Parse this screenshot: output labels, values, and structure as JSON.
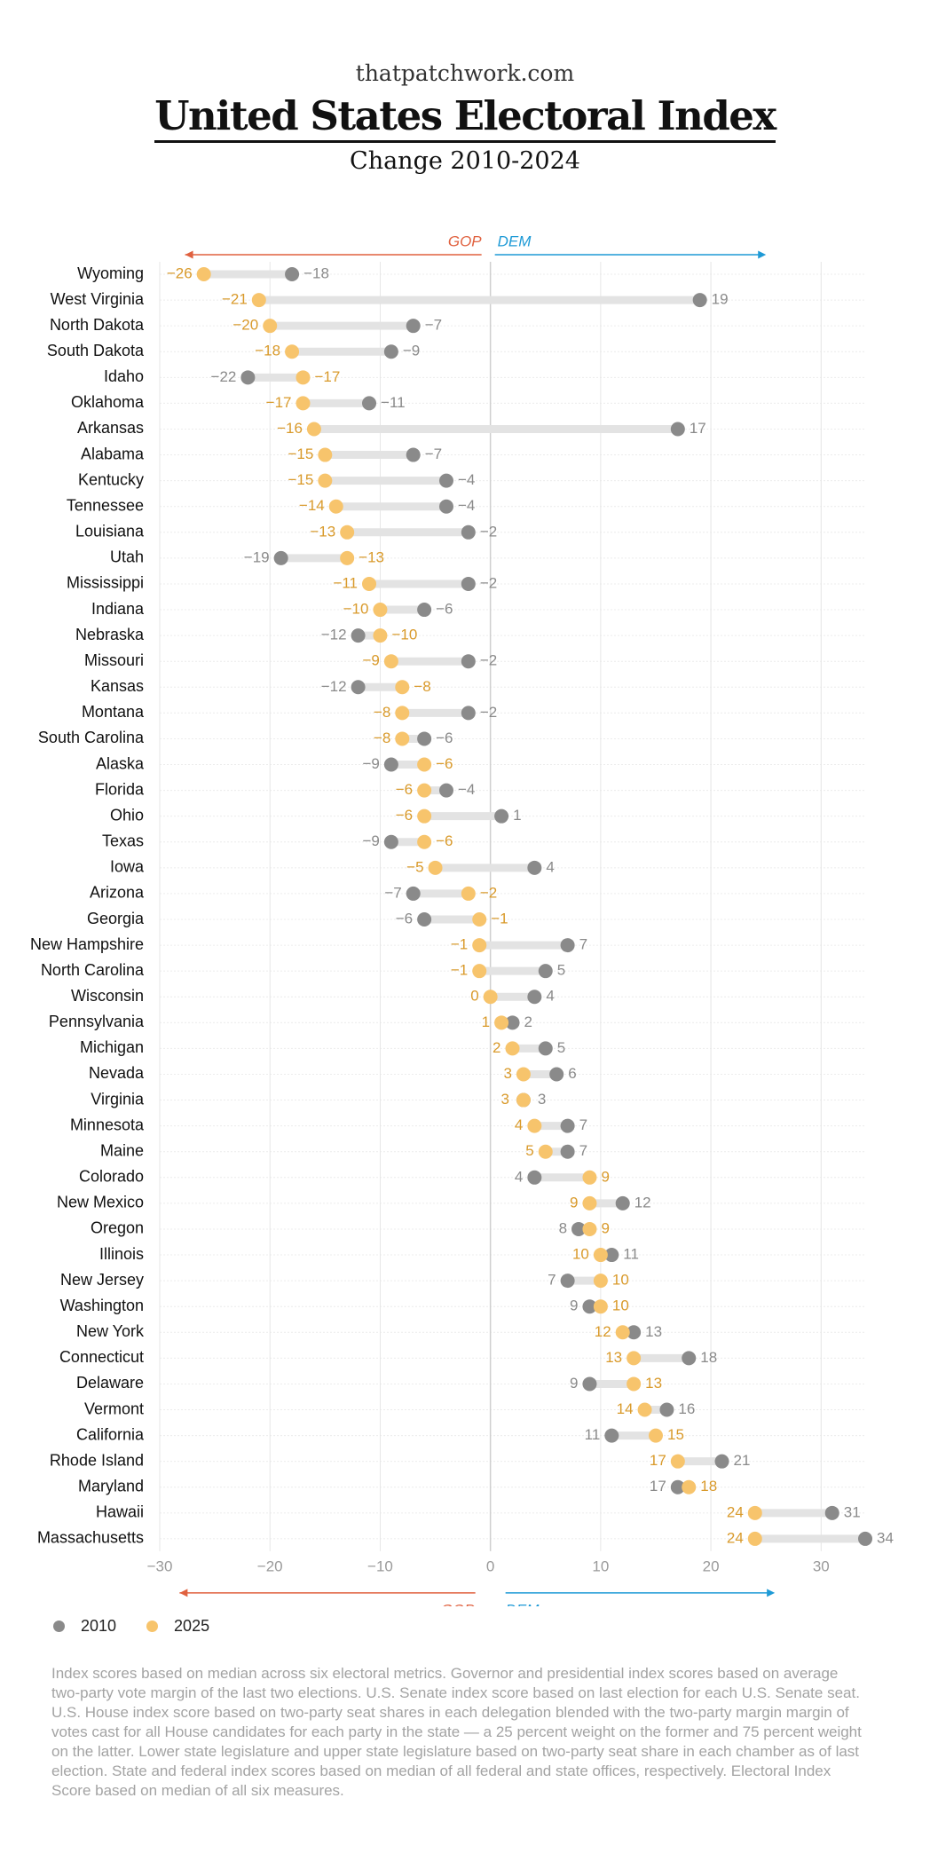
{
  "header": {
    "site": "thatpatchwork.com",
    "title": "United States Electoral Index",
    "subtitle": "Change 2010-2024"
  },
  "colors": {
    "y2010": "#8a8a8a",
    "y2025": "#f7c46c",
    "gop": "#e0613f",
    "dem": "#1e9ad6",
    "label2025": "#d99a2b",
    "label2010": "#8a8a8a",
    "connector": "#e3e3e3"
  },
  "chart_data": {
    "type": "dumbbell",
    "xlim": [
      -30,
      34
    ],
    "xticks": [
      -30,
      -20,
      -10,
      0,
      10,
      20,
      30
    ],
    "xtick_labels": [
      "−30",
      "−20",
      "−10",
      "0",
      "10",
      "20",
      "30"
    ],
    "direction_labels": {
      "left": "GOP",
      "right": "DEM"
    },
    "grid": true,
    "legend_position": "bottom-left",
    "series": [
      {
        "name": "2010",
        "color": "#8a8a8a"
      },
      {
        "name": "2025",
        "color": "#f7c46c"
      }
    ],
    "rows": [
      {
        "state": "Wyoming",
        "v2010": -18,
        "v2025": -26
      },
      {
        "state": "West Virginia",
        "v2010": 19,
        "v2025": -21
      },
      {
        "state": "North Dakota",
        "v2010": -7,
        "v2025": -20
      },
      {
        "state": "South Dakota",
        "v2010": -9,
        "v2025": -18
      },
      {
        "state": "Idaho",
        "v2010": -22,
        "v2025": -17
      },
      {
        "state": "Oklahoma",
        "v2010": -11,
        "v2025": -17
      },
      {
        "state": "Arkansas",
        "v2010": 17,
        "v2025": -16
      },
      {
        "state": "Alabama",
        "v2010": -7,
        "v2025": -15
      },
      {
        "state": "Kentucky",
        "v2010": -4,
        "v2025": -15
      },
      {
        "state": "Tennessee",
        "v2010": -4,
        "v2025": -14
      },
      {
        "state": "Louisiana",
        "v2010": -2,
        "v2025": -13
      },
      {
        "state": "Utah",
        "v2010": -19,
        "v2025": -13
      },
      {
        "state": "Mississippi",
        "v2010": -2,
        "v2025": -11
      },
      {
        "state": "Indiana",
        "v2010": -6,
        "v2025": -10
      },
      {
        "state": "Nebraska",
        "v2010": -12,
        "v2025": -10
      },
      {
        "state": "Missouri",
        "v2010": -2,
        "v2025": -9
      },
      {
        "state": "Kansas",
        "v2010": -12,
        "v2025": -8
      },
      {
        "state": "Montana",
        "v2010": -2,
        "v2025": -8
      },
      {
        "state": "South Carolina",
        "v2010": -6,
        "v2025": -8
      },
      {
        "state": "Alaska",
        "v2010": -9,
        "v2025": -6
      },
      {
        "state": "Florida",
        "v2010": -4,
        "v2025": -6
      },
      {
        "state": "Ohio",
        "v2010": 1,
        "v2025": -6
      },
      {
        "state": "Texas",
        "v2010": -9,
        "v2025": -6
      },
      {
        "state": "Iowa",
        "v2010": 4,
        "v2025": -5
      },
      {
        "state": "Arizona",
        "v2010": -7,
        "v2025": -2
      },
      {
        "state": "Georgia",
        "v2010": -6,
        "v2025": -1
      },
      {
        "state": "New Hampshire",
        "v2010": 7,
        "v2025": -1
      },
      {
        "state": "North Carolina",
        "v2010": 5,
        "v2025": -1
      },
      {
        "state": "Wisconsin",
        "v2010": 4,
        "v2025": 0
      },
      {
        "state": "Pennsylvania",
        "v2010": 2,
        "v2025": 1
      },
      {
        "state": "Michigan",
        "v2010": 5,
        "v2025": 2
      },
      {
        "state": "Nevada",
        "v2010": 6,
        "v2025": 3
      },
      {
        "state": "Virginia",
        "v2010": 3,
        "v2025": 3
      },
      {
        "state": "Minnesota",
        "v2010": 7,
        "v2025": 4
      },
      {
        "state": "Maine",
        "v2010": 7,
        "v2025": 5
      },
      {
        "state": "Colorado",
        "v2010": 4,
        "v2025": 9
      },
      {
        "state": "New Mexico",
        "v2010": 12,
        "v2025": 9
      },
      {
        "state": "Oregon",
        "v2010": 8,
        "v2025": 9
      },
      {
        "state": "Illinois",
        "v2010": 11,
        "v2025": 10
      },
      {
        "state": "New Jersey",
        "v2010": 7,
        "v2025": 10
      },
      {
        "state": "Washington",
        "v2010": 9,
        "v2025": 10
      },
      {
        "state": "New York",
        "v2010": 13,
        "v2025": 12
      },
      {
        "state": "Connecticut",
        "v2010": 18,
        "v2025": 13
      },
      {
        "state": "Delaware",
        "v2010": 9,
        "v2025": 13
      },
      {
        "state": "Vermont",
        "v2010": 16,
        "v2025": 14
      },
      {
        "state": "California",
        "v2010": 11,
        "v2025": 15
      },
      {
        "state": "Rhode Island",
        "v2010": 21,
        "v2025": 17
      },
      {
        "state": "Maryland",
        "v2010": 17,
        "v2025": 18
      },
      {
        "state": "Hawaii",
        "v2010": 31,
        "v2025": 24
      },
      {
        "state": "Massachusetts",
        "v2010": 34,
        "v2025": 24
      }
    ]
  },
  "legend": {
    "label_2010": "2010",
    "label_2025": "2025"
  },
  "footnote": "Index scores based on median across six electoral metrics. Governor and presidential index scores based on average two-party vote margin of the last two elections. U.S. Senate index score based on last election for each U.S. Senate seat. U.S. House index score based on two-party seat shares in each delegation blended with the two-party margin margin of votes cast for all House candidates for each party in the state — a 25 percent weight on the former and 75 percent weight on the latter. Lower state legislature and upper state legislature based on two-party seat share in each chamber as of last election. State and federal index scores based on median of all federal and state offices, respectively. Electoral Index Score based on median of all six measures."
}
